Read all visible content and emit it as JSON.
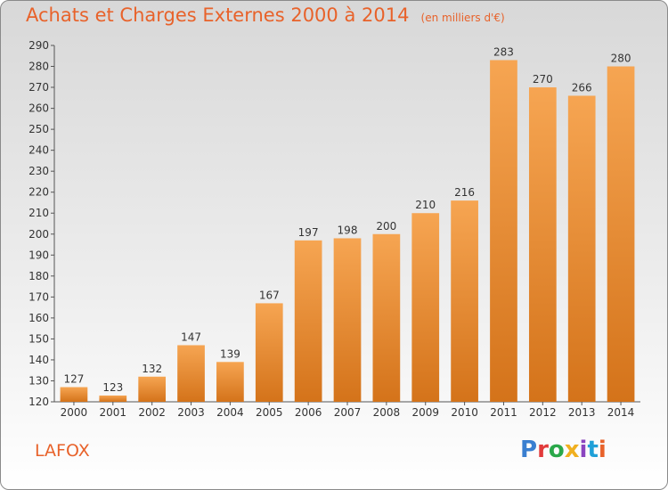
{
  "header": {
    "title": "Achats et Charges Externes 2000 à 2014",
    "subtitle": "(en milliers d'€)"
  },
  "footer": {
    "commune": "LAFOX",
    "logo_text": "Proxiti",
    "logo_colors": [
      "#3a7fd0",
      "#e23b3b",
      "#2aa84a",
      "#f0b020",
      "#8a45c0",
      "#1fa0d8",
      "#e8622a"
    ]
  },
  "colors": {
    "accent": "#e8622a",
    "bar_light": "#f6a552",
    "bar_dark": "#d97b1e"
  },
  "chart_data": {
    "type": "bar",
    "title": "Achats et Charges Externes 2000 à 2014",
    "subtitle": "(en milliers d'€)",
    "categories": [
      "2000",
      "2001",
      "2002",
      "2003",
      "2004",
      "2005",
      "2006",
      "2007",
      "2008",
      "2009",
      "2010",
      "2011",
      "2012",
      "2013",
      "2014"
    ],
    "values": [
      127,
      123,
      132,
      147,
      139,
      167,
      197,
      198,
      200,
      210,
      216,
      283,
      270,
      266,
      280
    ],
    "ylim": [
      120,
      290
    ],
    "yticks": [
      120,
      130,
      140,
      150,
      160,
      170,
      180,
      190,
      200,
      210,
      220,
      230,
      240,
      250,
      260,
      270,
      280,
      290
    ],
    "grid": false,
    "data_labels": true
  }
}
